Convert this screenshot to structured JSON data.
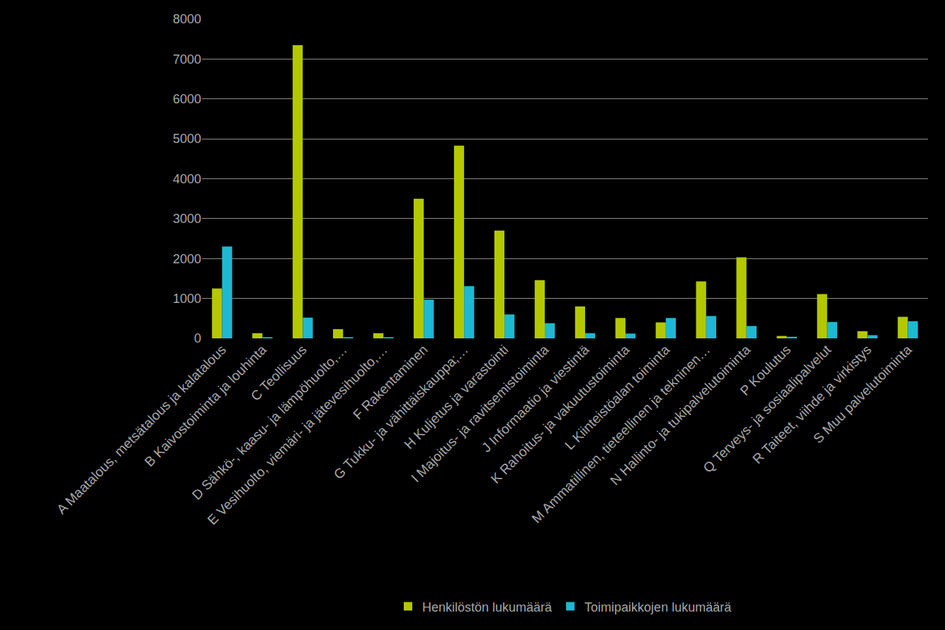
{
  "chart_data": {
    "type": "bar",
    "categories": [
      "A Maatalous, metsätalous ja kalatalous",
      "B Kaivostoiminta ja louhinta",
      "C Teollisuus",
      "D Sähkö-, kaasu- ja lämpöhuolto,…",
      "E Vesihuolto, viemäri- ja jätevesihuolto,…",
      "F Rakentaminen",
      "G Tukku- ja vähittäiskauppa;…",
      "H Kuljetus ja varastointi",
      "I Majoitus- ja ravitsemistoiminta",
      "J Informaatio ja viestintä",
      "K Rahoitus- ja vakuutustoiminta",
      "L Kiinteistöalan toiminta",
      "M Ammatillinen, tieteellinen ja tekninen…",
      "N Hallinto- ja tukipalvelutoiminta",
      "P Koulutus",
      "Q Terveys- ja sosiaalipalvelut",
      "R Taiteet, viihde ja virkistys",
      "S Muu palvelutoiminta"
    ],
    "series": [
      {
        "name": "Henkilöstön lukumäärä",
        "color": "#b4c800",
        "values": [
          1250,
          130,
          7350,
          230,
          130,
          3500,
          4830,
          2700,
          1460,
          800,
          510,
          400,
          1430,
          2030,
          60,
          1110,
          180,
          540
        ]
      },
      {
        "name": "Toimipaikkojen lukumäärä",
        "color": "#1fb8d2",
        "values": [
          2300,
          30,
          520,
          30,
          30,
          970,
          1310,
          600,
          380,
          130,
          120,
          510,
          560,
          310,
          40,
          410,
          80,
          430
        ]
      }
    ],
    "ylim": [
      0,
      8000
    ],
    "yticks": [
      0,
      1000,
      2000,
      3000,
      4000,
      5000,
      6000,
      7000,
      8000
    ],
    "grid": true,
    "legend": "bottom"
  }
}
